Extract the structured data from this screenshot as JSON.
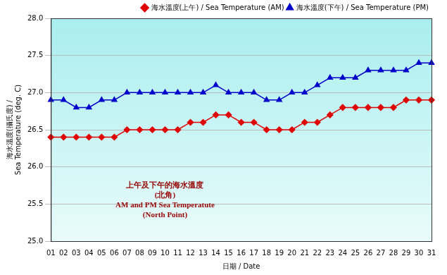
{
  "chart_data": {
    "type": "line",
    "x_label": "日期 / Date",
    "y_label": [
      "海水溫度(攝氏度) /",
      "Sea Temperature (deg. C)"
    ],
    "annotation": [
      "上午及下午的海水溫度",
      "(北角)",
      "AM and PM Sea Temperatute",
      "(North Point)"
    ],
    "categories": [
      "01",
      "02",
      "03",
      "04",
      "05",
      "06",
      "07",
      "08",
      "09",
      "10",
      "11",
      "12",
      "13",
      "14",
      "15",
      "16",
      "17",
      "18",
      "19",
      "20",
      "21",
      "22",
      "23",
      "24",
      "25",
      "26",
      "27",
      "28",
      "29",
      "30",
      "31"
    ],
    "series": [
      {
        "name": "海水溫度(上午) / Sea Temperature (AM)",
        "color": "#e00000",
        "marker": "diamond",
        "values": [
          26.4,
          26.4,
          26.4,
          26.4,
          26.4,
          26.4,
          26.5,
          26.5,
          26.5,
          26.5,
          26.5,
          26.6,
          26.6,
          26.7,
          26.7,
          26.6,
          26.6,
          26.5,
          26.5,
          26.5,
          26.6,
          26.6,
          26.7,
          26.8,
          26.8,
          26.8,
          26.8,
          26.8,
          26.9,
          26.9,
          26.9
        ]
      },
      {
        "name": "海水溫度(下午) / Sea Temperature (PM)",
        "color": "#0000cc",
        "marker": "triangle",
        "values": [
          26.9,
          26.9,
          26.8,
          26.8,
          26.9,
          26.9,
          27.0,
          27.0,
          27.0,
          27.0,
          27.0,
          27.0,
          27.0,
          27.1,
          27.0,
          27.0,
          27.0,
          26.9,
          26.9,
          27.0,
          27.0,
          27.1,
          27.2,
          27.2,
          27.2,
          27.3,
          27.3,
          27.3,
          27.3,
          27.4,
          27.4
        ]
      }
    ],
    "ylim": [
      25.0,
      28.0
    ],
    "yticks": [
      {
        "value": 25.0,
        "label": "25.0"
      },
      25.5,
      {
        "value": 26.0,
        "label": "26.0"
      },
      26.5,
      {
        "value": 27.0,
        "label": "27.0"
      },
      27.5,
      {
        "value": 28.0,
        "label": "28.0"
      }
    ],
    "grid": true,
    "legend": "top-right"
  }
}
